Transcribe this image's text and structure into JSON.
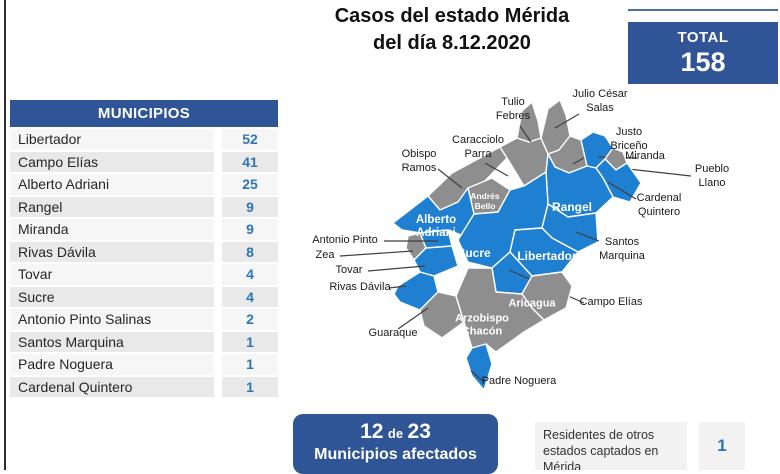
{
  "title": {
    "line1": "Casos del estado Mérida",
    "line2": "del día 8.12.2020"
  },
  "total": {
    "label": "TOTAL",
    "value": "158"
  },
  "table": {
    "header": "MUNICIPIOS",
    "rows": [
      {
        "name": "Libertador",
        "value": "52"
      },
      {
        "name": "Campo Elías",
        "value": "41"
      },
      {
        "name": "Alberto Adriani",
        "value": "25"
      },
      {
        "name": "Rangel",
        "value": "9"
      },
      {
        "name": "Miranda",
        "value": "9"
      },
      {
        "name": "Rivas Dávila",
        "value": "8"
      },
      {
        "name": "Tovar",
        "value": "4"
      },
      {
        "name": "Sucre",
        "value": "4"
      },
      {
        "name": "Antonio Pinto Salinas",
        "value": "2"
      },
      {
        "name": "Santos Marquina",
        "value": "1"
      },
      {
        "name": "Padre Noguera",
        "value": "1"
      },
      {
        "name": "Cardenal Quintero",
        "value": "1"
      }
    ]
  },
  "map": {
    "regions": [
      {
        "id": "obispo-ramos",
        "label": "Obispo\nRamos",
        "affected": false
      },
      {
        "id": "caracciolo-parra",
        "label": "Caracciolo\nParra",
        "affected": false
      },
      {
        "id": "tulio-febres",
        "label": "Tulio\nFebres",
        "affected": false
      },
      {
        "id": "julio-cesar-salas",
        "label": "Julio César\nSalas",
        "affected": false
      },
      {
        "id": "justo-briceno",
        "label": "Justo\nBriceño",
        "affected": false
      },
      {
        "id": "miranda",
        "label": "Miranda",
        "affected": true
      },
      {
        "id": "pueblo-llano",
        "label": "Pueblo\nLlano",
        "affected": false
      },
      {
        "id": "cardenal-quintero",
        "label": "Cardenal\nQuintero",
        "affected": true
      },
      {
        "id": "rangel",
        "label": "Rangel",
        "affected": true
      },
      {
        "id": "andres-bello",
        "label": "Andrés\nBello",
        "affected": false
      },
      {
        "id": "alberto-adriani",
        "label": "Alberto\nAdriani",
        "affected": true
      },
      {
        "id": "zea",
        "label": "Zea",
        "affected": false
      },
      {
        "id": "antonio-pinto",
        "label": "Antonio Pinto",
        "affected": true
      },
      {
        "id": "tovar",
        "label": "Tovar",
        "affected": true
      },
      {
        "id": "rivas-davila",
        "label": "Rivas Dávila",
        "affected": true
      },
      {
        "id": "sucre",
        "label": "Sucre",
        "affected": true
      },
      {
        "id": "santos-marquina",
        "label": "Santos\nMarquina",
        "affected": true
      },
      {
        "id": "libertador",
        "label": "Libertador",
        "affected": true
      },
      {
        "id": "campo-elias",
        "label": "Campo Elías",
        "affected": true
      },
      {
        "id": "guaraque",
        "label": "Guaraque",
        "affected": false
      },
      {
        "id": "arzobispo-chacon",
        "label": "Arzobispo\nChacón",
        "affected": false
      },
      {
        "id": "aricagua",
        "label": "Aricagua",
        "affected": false
      },
      {
        "id": "padre-noguera",
        "label": "Padre Noguera",
        "affected": true
      }
    ]
  },
  "footer": {
    "count": "12",
    "of_word": "de",
    "total_munis": "23",
    "caption": "Municipios afectados"
  },
  "note": {
    "text": "Residentes de otros estados captados en Mérida",
    "value": "1"
  },
  "colors": {
    "accent_dark_blue": "#2F5597",
    "map_affected_blue": "#1F80D2",
    "map_unaffected_gray": "#8E8E8E",
    "value_blue": "#2E75B6"
  }
}
